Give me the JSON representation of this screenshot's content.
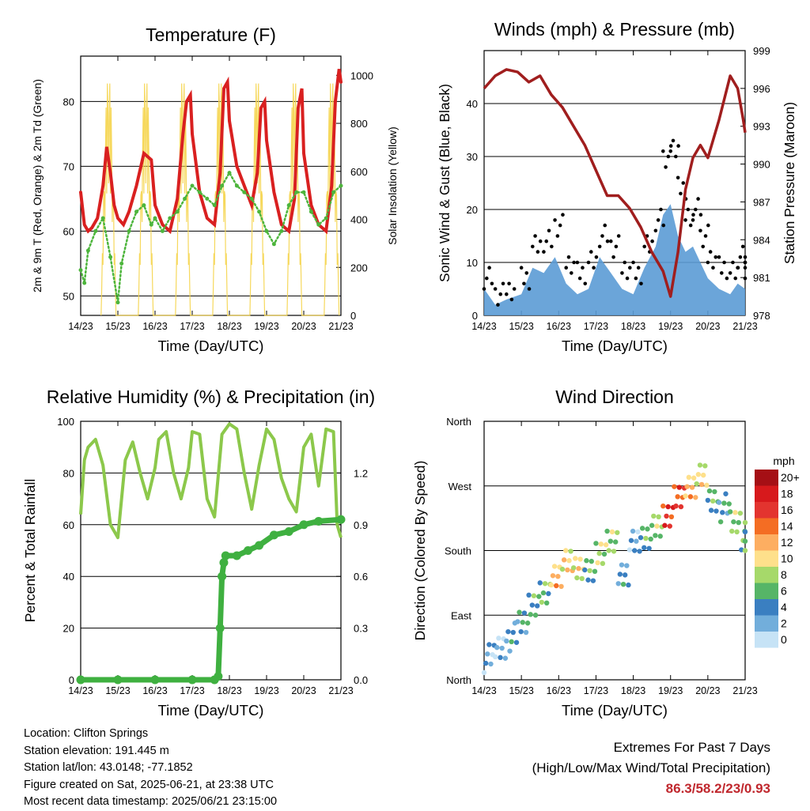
{
  "chart_data": [
    {
      "type": "line",
      "title": "Temperature (F)",
      "xlabel": "Time (Day/UTC)",
      "ylabel": "2m & 9m T (Red, Orange) & 2m Td (Green)",
      "y2label": "Solar Insolation (Yellow)",
      "xticks": [
        "14/23",
        "15/23",
        "16/23",
        "17/23",
        "18/23",
        "19/23",
        "20/23",
        "21/23"
      ],
      "ylim": [
        47,
        87
      ],
      "yticks": [
        50,
        60,
        70,
        80
      ],
      "y2lim": [
        0,
        1080
      ],
      "y2ticks": [
        0,
        200,
        400,
        600,
        800,
        1000
      ],
      "grid": true,
      "series": [
        {
          "name": "2m T",
          "color": "#d92020",
          "x": [
            0,
            0.1,
            0.2,
            0.3,
            0.45,
            0.6,
            0.7,
            0.8,
            0.9,
            1.0,
            1.15,
            1.3,
            1.5,
            1.7,
            1.9,
            2.0,
            2.2,
            2.4,
            2.6,
            2.75,
            2.85,
            2.95,
            3.0,
            3.2,
            3.4,
            3.6,
            3.75,
            3.85,
            3.95,
            4.0,
            4.2,
            4.4,
            4.6,
            4.75,
            4.85,
            4.95,
            5.0,
            5.2,
            5.4,
            5.6,
            5.75,
            5.85,
            5.95,
            6.0,
            6.2,
            6.4,
            6.6,
            6.75,
            6.85,
            6.95,
            7.0
          ],
          "values": [
            66,
            61,
            60,
            60.5,
            62,
            67,
            73,
            69,
            64,
            62,
            61,
            63,
            67,
            72,
            71,
            64,
            61,
            60,
            65,
            75,
            80,
            81,
            75,
            66,
            62,
            61,
            69,
            82,
            83,
            77,
            70,
            67,
            64,
            69,
            79,
            80,
            74,
            66,
            61,
            60,
            65,
            79,
            82,
            72,
            64,
            61,
            60,
            67,
            80,
            85,
            83
          ]
        },
        {
          "name": "Td",
          "color": "#4db53c",
          "x": [
            0,
            0.1,
            0.2,
            0.4,
            0.6,
            0.8,
            1.0,
            1.1,
            1.3,
            1.5,
            1.7,
            1.9,
            2.0,
            2.2,
            2.4,
            2.6,
            2.8,
            3.0,
            3.2,
            3.4,
            3.6,
            3.8,
            4.0,
            4.2,
            4.4,
            4.6,
            4.8,
            5.0,
            5.2,
            5.4,
            5.6,
            5.8,
            6.0,
            6.2,
            6.4,
            6.6,
            6.8,
            7.0
          ],
          "values": [
            54,
            52,
            57,
            60,
            62,
            56,
            49,
            55,
            60,
            63,
            64,
            61,
            62,
            60,
            62,
            63,
            65,
            67,
            66,
            65,
            64,
            67,
            69,
            67,
            66,
            65,
            63,
            60,
            58,
            60,
            64,
            66,
            66,
            63,
            61,
            62,
            66,
            67
          ]
        }
      ],
      "note": "Yellow series shows solar insolation daily cycles peaking near 1000 W/m2"
    },
    {
      "type": "scatter",
      "title": "Winds (mph) & Pressure (mb)",
      "xlabel": "Time (Day/UTC)",
      "ylabel": "Sonic Wind & Gust (Blue, Black)",
      "y2label": "Station Pressure (Maroon)",
      "xticks": [
        "14/23",
        "15/23",
        "16/23",
        "17/23",
        "18/23",
        "19/23",
        "20/23",
        "21/23"
      ],
      "ylim": [
        0,
        50
      ],
      "yticks": [
        0,
        10,
        20,
        30,
        40
      ],
      "y2lim": [
        978,
        999
      ],
      "y2ticks": [
        978,
        981,
        984,
        987,
        990,
        993,
        996,
        999
      ],
      "grid": true,
      "series": [
        {
          "name": "Pressure",
          "color": "#a01e1e",
          "x": [
            0,
            0.3,
            0.6,
            0.9,
            1.2,
            1.5,
            1.8,
            2.1,
            2.4,
            2.7,
            3.0,
            3.3,
            3.6,
            3.9,
            4.2,
            4.5,
            4.8,
            5.0,
            5.2,
            5.4,
            5.6,
            5.8,
            6.0,
            6.3,
            6.6,
            6.8,
            6.95,
            7.0
          ],
          "values": [
            996,
            997,
            997.5,
            997.3,
            996.5,
            997,
            995.5,
            994.5,
            993,
            991.5,
            989.5,
            987.5,
            987.5,
            986.5,
            985,
            983,
            981.5,
            979.5,
            983,
            988,
            990.5,
            991.5,
            990.5,
            993.5,
            997,
            996,
            993.5,
            992.5
          ]
        },
        {
          "name": "Wind",
          "color": "#5b9bd5",
          "x": [
            0,
            0.3,
            0.6,
            1.0,
            1.3,
            1.6,
            1.9,
            2.2,
            2.5,
            2.8,
            3.1,
            3.4,
            3.7,
            4.0,
            4.3,
            4.6,
            4.8,
            5.0,
            5.2,
            5.4,
            5.6,
            5.8,
            6.0,
            6.3,
            6.6,
            6.8,
            7.0
          ],
          "values": [
            5,
            2,
            3,
            4,
            9,
            8,
            11,
            6,
            4,
            5,
            11,
            8,
            5,
            4,
            9,
            13,
            19,
            21,
            15,
            12,
            13,
            10,
            7,
            5,
            4,
            6,
            5
          ]
        },
        {
          "name": "Gust",
          "color": "#000000",
          "x": [
            0,
            0.3,
            0.6,
            1.0,
            1.3,
            1.6,
            1.9,
            2.2,
            2.5,
            2.8,
            3.1,
            3.4,
            3.7,
            4.0,
            4.3,
            4.6,
            4.8,
            5.0,
            5.2,
            5.4,
            5.6,
            5.8,
            6.0,
            6.3,
            6.6,
            6.8,
            7.0
          ],
          "values": [
            7,
            4,
            5,
            7,
            13,
            14,
            17,
            10,
            8,
            10,
            15,
            13,
            9,
            8,
            13,
            18,
            30,
            32,
            24,
            18,
            20,
            15,
            11,
            9,
            8,
            11,
            9
          ]
        }
      ]
    },
    {
      "type": "line",
      "title": "Relative Humidity (%) & Precipitation (in)",
      "xlabel": "Time (Day/UTC)",
      "ylabel": "Percent & Total Rainfall",
      "xticks": [
        "14/23",
        "15/23",
        "16/23",
        "17/23",
        "18/23",
        "19/23",
        "20/23",
        "21/23"
      ],
      "ylim": [
        0,
        100
      ],
      "yticks": [
        0,
        20,
        40,
        60,
        80,
        100
      ],
      "y2lim": [
        0,
        1.5
      ],
      "y2ticks": [
        "0.0",
        "0.3",
        "0.6",
        "0.9",
        "1.2"
      ],
      "grid": true,
      "series": [
        {
          "name": "RH",
          "color": "#8cc84b",
          "x": [
            0,
            0.1,
            0.2,
            0.4,
            0.6,
            0.8,
            1.0,
            1.2,
            1.4,
            1.6,
            1.8,
            2.0,
            2.1,
            2.3,
            2.5,
            2.7,
            2.9,
            3.0,
            3.2,
            3.4,
            3.6,
            3.8,
            4.0,
            4.2,
            4.4,
            4.6,
            4.8,
            5.0,
            5.2,
            5.4,
            5.6,
            5.8,
            6.0,
            6.2,
            6.4,
            6.6,
            6.8,
            6.9,
            7.0
          ],
          "values": [
            64,
            85,
            90,
            93,
            83,
            60,
            55,
            85,
            92,
            80,
            70,
            82,
            93,
            96,
            80,
            70,
            82,
            96,
            95,
            70,
            63,
            95,
            99,
            97,
            80,
            66,
            83,
            97,
            93,
            78,
            70,
            65,
            90,
            95,
            75,
            97,
            96,
            60,
            55
          ]
        },
        {
          "name": "Rainfall",
          "color": "#3fb040",
          "x": [
            0,
            1,
            2,
            3,
            3.6,
            3.7,
            3.75,
            3.8,
            3.85,
            3.9,
            4.2,
            4.5,
            4.8,
            5.2,
            5.6,
            6.0,
            6.4,
            7.0
          ],
          "values": [
            0,
            0,
            0,
            0,
            0,
            0.02,
            0.3,
            0.6,
            0.68,
            0.72,
            0.72,
            0.75,
            0.78,
            0.84,
            0.86,
            0.9,
            0.92,
            0.93
          ]
        }
      ]
    },
    {
      "type": "scatter",
      "title": "Wind Direction",
      "xlabel": "Time (Day/UTC)",
      "ylabel": "Direction (Colored By Speed)",
      "xticks": [
        "14/23",
        "15/23",
        "16/23",
        "17/23",
        "18/23",
        "19/23",
        "20/23",
        "21/23"
      ],
      "yticks": [
        "North",
        "East",
        "South",
        "West",
        "North"
      ],
      "ylim": [
        0,
        360
      ],
      "grid": true,
      "colorbar_title": "mph",
      "colorbar_labels": [
        "20+",
        "18",
        "16",
        "14",
        "12",
        "10",
        "8",
        "6",
        "4",
        "2",
        "0"
      ],
      "colorbar_colors": [
        "#a50f15",
        "#d7191c",
        "#e3342f",
        "#f46d23",
        "#fdae61",
        "#fee08b",
        "#a6d96a",
        "#56b567",
        "#3a7fc1",
        "#72aedb",
        "#c6e3f6"
      ],
      "series": [
        {
          "name": "Direction",
          "x": [
            0,
            0.3,
            0.6,
            0.9,
            1.2,
            1.5,
            1.8,
            2.1,
            2.4,
            2.7,
            3.0,
            3.3,
            3.6,
            3.9,
            4.2,
            4.5,
            4.8,
            5.1,
            5.4,
            5.7,
            6.0,
            6.3,
            6.6,
            6.9
          ],
          "values": [
            30,
            45,
            60,
            80,
            110,
            120,
            150,
            165,
            160,
            150,
            180,
            190,
            150,
            190,
            200,
            210,
            230,
            250,
            270,
            280,
            250,
            240,
            220,
            200
          ],
          "speeds": [
            3,
            2,
            4,
            5,
            6,
            7,
            12,
            11,
            10,
            6,
            9,
            8,
            4,
            3,
            6,
            8,
            17,
            16,
            12,
            10,
            6,
            5,
            8,
            7
          ]
        }
      ]
    }
  ],
  "info": {
    "location": "Location: Clifton Springs",
    "elevation": "Station elevation: 191.445 m",
    "latlon": "Station lat/lon: 43.0148; -77.1852",
    "created": "Figure created on Sat, 2025-06-21, at 23:38 UTC",
    "recent": "Most recent data timestamp: 2025/06/21 23:15:00"
  },
  "extremes": {
    "line1": "Extremes For Past 7 Days",
    "line2": "(High/Low/Max Wind/Total Precipitation)",
    "values": "86.3/58.2/23/0.93"
  }
}
